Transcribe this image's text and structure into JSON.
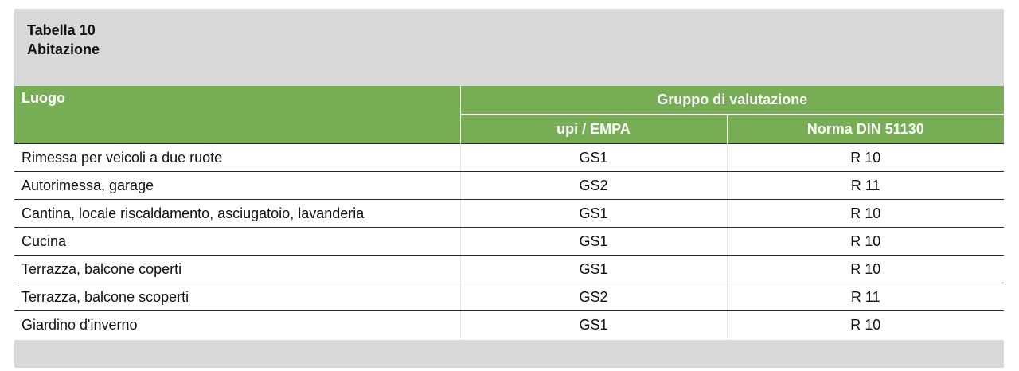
{
  "header": {
    "table_number": "Tabella 10",
    "title": "Abitazione"
  },
  "columns": {
    "location": "Luogo",
    "group": "Gruppo di valutazione",
    "upi": "upi / EMPA",
    "din": "Norma DIN 51130"
  },
  "rows": [
    {
      "location": "Rimessa per veicoli a due ruote",
      "upi": "GS1",
      "din": "R 10"
    },
    {
      "location": "Autorimessa, garage",
      "upi": "GS2",
      "din": "R 11"
    },
    {
      "location": "Cantina, locale riscaldamento, asciugatoio, lavanderia",
      "upi": "GS1",
      "din": "R 10"
    },
    {
      "location": "Cucina",
      "upi": "GS1",
      "din": "R 10"
    },
    {
      "location": "Terrazza, balcone coperti",
      "upi": "GS1",
      "din": "R 10"
    },
    {
      "location": "Terrazza, balcone scoperti",
      "upi": "GS2",
      "din": "R 11"
    },
    {
      "location": "Giardino d'inverno",
      "upi": "GS1",
      "din": "R 10"
    }
  ]
}
